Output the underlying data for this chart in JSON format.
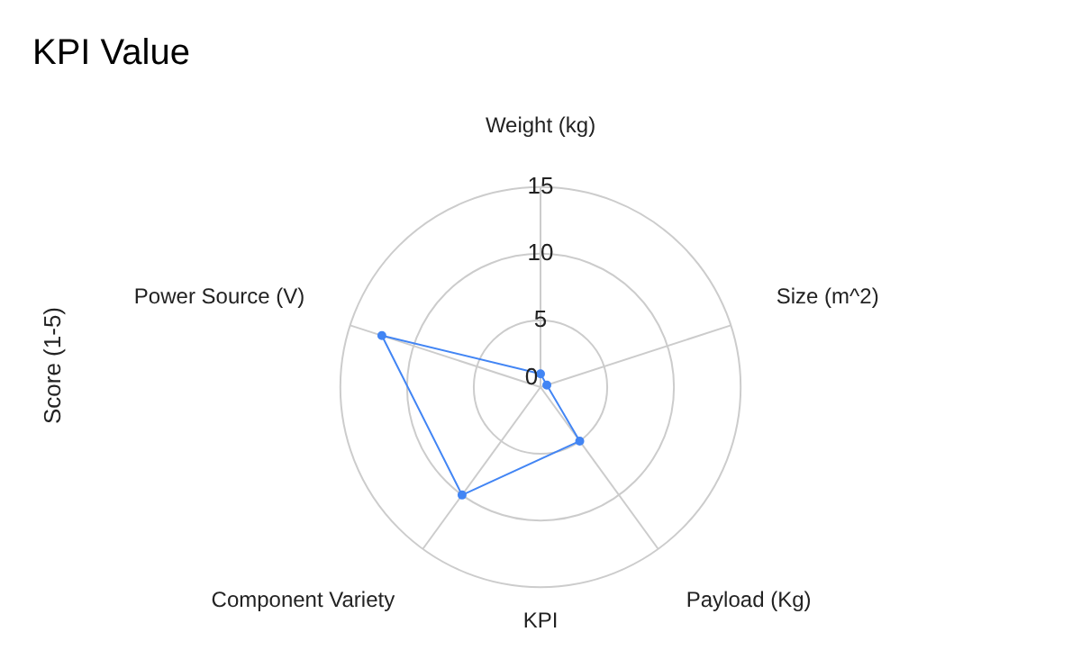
{
  "chart_data": {
    "type": "radar",
    "title": "KPI Value",
    "xlabel": "KPI",
    "ylabel": "Score (1-5)",
    "categories": [
      "Weight (kg)",
      "Size (m^2)",
      "Payload (Kg)",
      "Component Variety",
      "Power Source (V)"
    ],
    "series": [
      {
        "color": "#4285f4",
        "values": [
          1,
          0.5,
          5,
          10,
          12.5
        ]
      }
    ],
    "ylim": [
      0,
      15
    ],
    "yticks": [
      0,
      5,
      10,
      15
    ],
    "grid": true,
    "legend": false,
    "marker": "circle",
    "line_style": "solid"
  }
}
